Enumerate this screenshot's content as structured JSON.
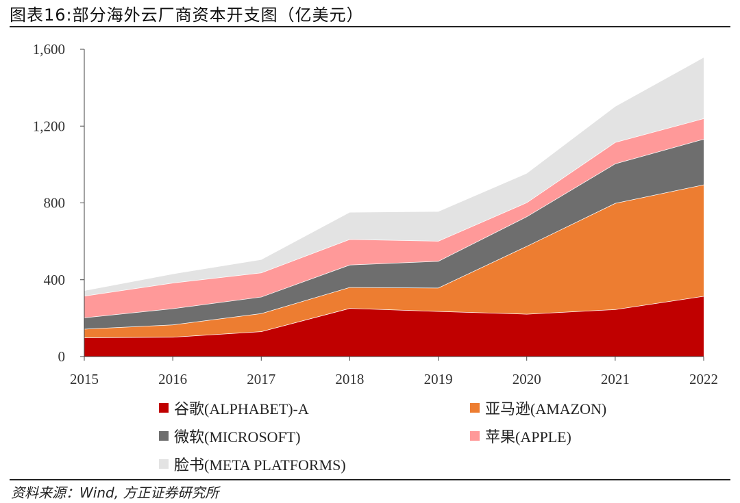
{
  "title": "图表16:部分海外云厂商资本开支图（亿美元）",
  "source": "资料来源：Wind, 方正证券研究所",
  "chart_data": {
    "type": "area",
    "stacked": true,
    "x": [
      "2015",
      "2016",
      "2017",
      "2018",
      "2019",
      "2020",
      "2021",
      "2022"
    ],
    "ylim": [
      0,
      1600
    ],
    "yticks": [
      0,
      400,
      800,
      1200,
      1600
    ],
    "ytick_labels": [
      "0",
      "400",
      "800",
      "1,200",
      "1,600"
    ],
    "grid": false,
    "legend_position": "bottom",
    "series": [
      {
        "name": "谷歌(ALPHABET)-A",
        "color": "#c00000",
        "values": [
          99,
          102,
          131,
          252,
          236,
          222,
          246,
          315
        ]
      },
      {
        "name": "亚马逊(AMAZON)",
        "color": "#ed7d31",
        "values": [
          45,
          64,
          94,
          109,
          122,
          353,
          553,
          580
        ]
      },
      {
        "name": "微软(MICROSOFT)",
        "color": "#6e6e6e",
        "values": [
          59,
          84,
          86,
          117,
          139,
          154,
          206,
          238
        ]
      },
      {
        "name": "苹果(APPLE)",
        "color": "#ff9999",
        "values": [
          113,
          134,
          126,
          133,
          105,
          73,
          111,
          107
        ]
      },
      {
        "name": "脸书(META PLATFORMS)",
        "color": "#e3e3e3",
        "values": [
          26,
          45,
          67,
          139,
          152,
          151,
          185,
          316
        ]
      }
    ]
  }
}
